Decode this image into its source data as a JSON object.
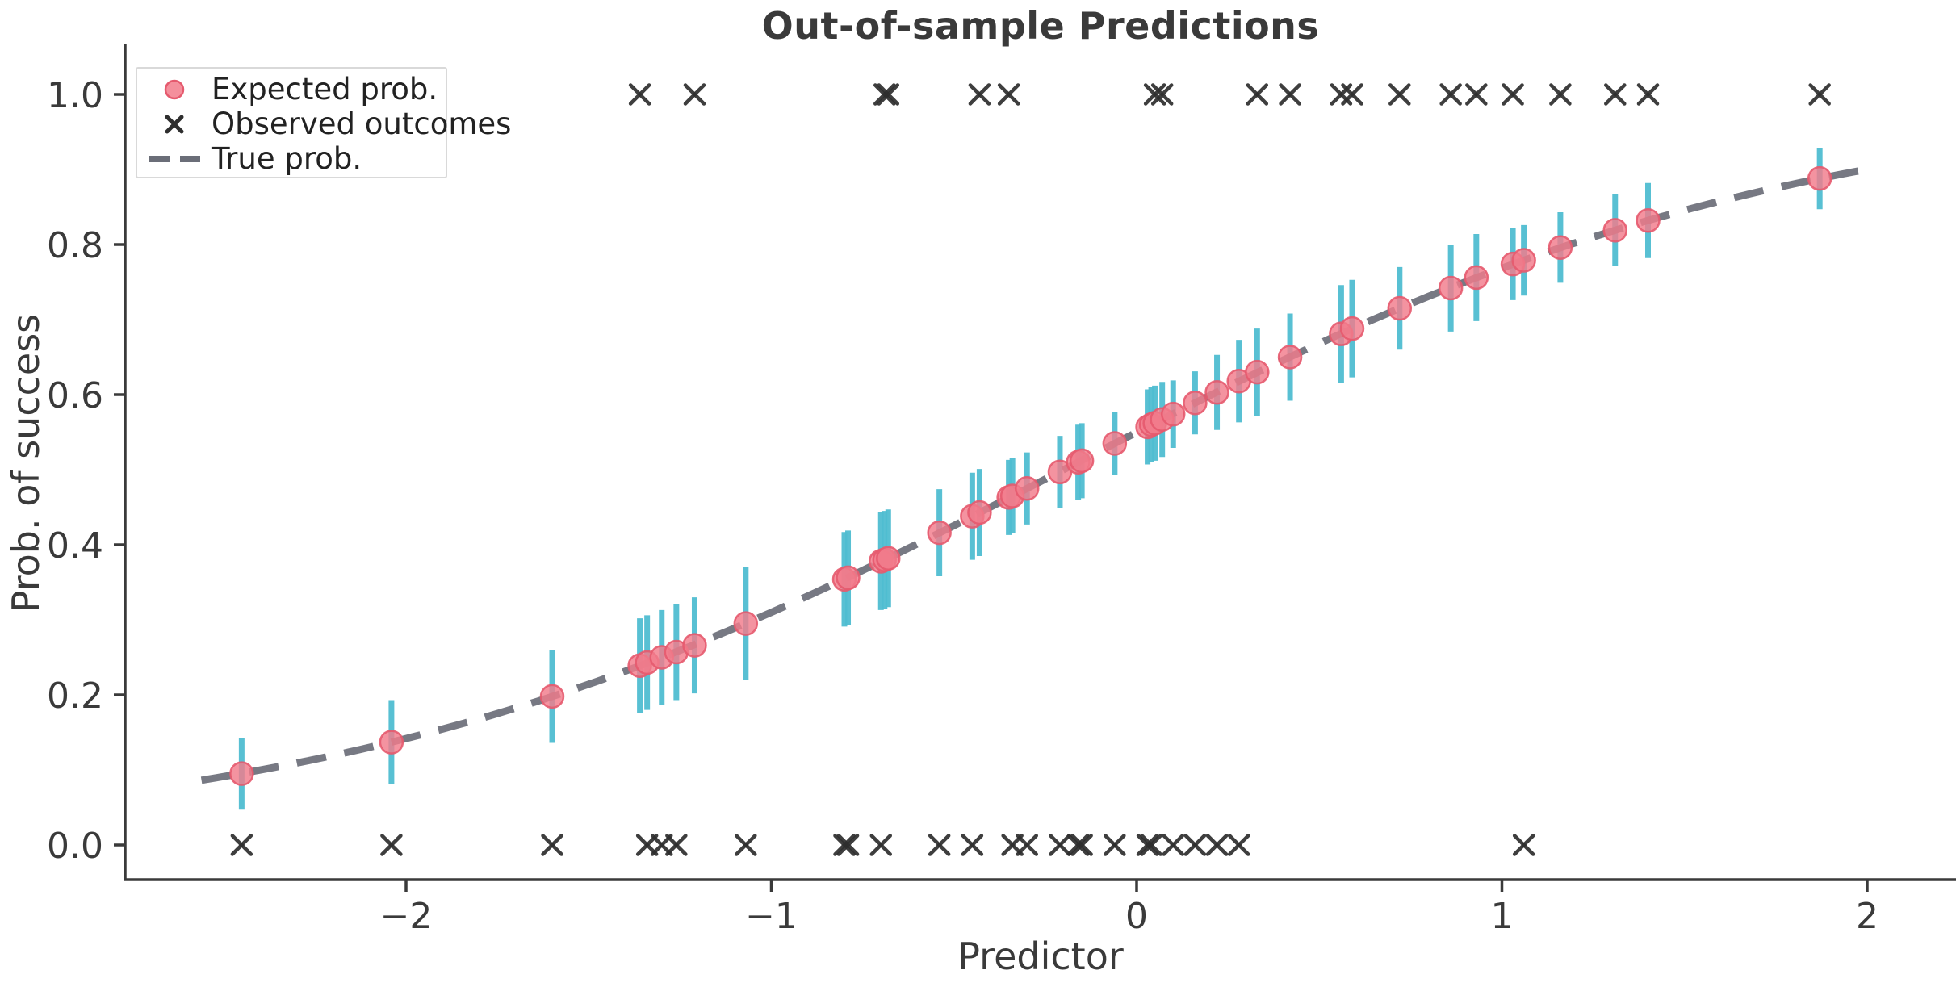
{
  "chart_data": {
    "type": "scatter",
    "title": "Out-of-sample Predictions",
    "xlabel": "Predictor",
    "ylabel": "Prob. of success",
    "xlim": [
      -2.77,
      2.24
    ],
    "ylim": [
      -0.046,
      1.067
    ],
    "grid": false,
    "x_ticks": {
      "values": [
        -2,
        -1,
        0,
        1,
        2
      ],
      "labels": [
        "−2",
        "−1",
        "0",
        "1",
        "2"
      ]
    },
    "y_ticks": {
      "values": [
        0.0,
        0.2,
        0.4,
        0.6,
        0.8,
        1.0
      ],
      "labels": [
        "0.0",
        "0.2",
        "0.4",
        "0.6",
        "0.8",
        "1.0"
      ]
    },
    "legend": {
      "position": "upper-left",
      "items": [
        {
          "label": "Expected prob.",
          "marker": "pink-dot"
        },
        {
          "label": "Observed outcomes",
          "marker": "black-x"
        },
        {
          "label": "True prob.",
          "marker": "gray-dashed-line"
        }
      ]
    },
    "true_prob_curve": {
      "model": "logistic",
      "formula": "p = 1 / (1 + exp(-(0.2 + 1.0*x)))",
      "intercept": 0.2,
      "slope": 1.0,
      "x_range": [
        -2.56,
        2.02
      ]
    },
    "predictions": [
      {
        "x": -2.45,
        "p": 0.095,
        "lo": 0.047,
        "hi": 0.143
      },
      {
        "x": -2.04,
        "p": 0.137,
        "lo": 0.081,
        "hi": 0.193
      },
      {
        "x": -1.6,
        "p": 0.198,
        "lo": 0.136,
        "hi": 0.26
      },
      {
        "x": -1.36,
        "p": 0.239,
        "lo": 0.176,
        "hi": 0.302
      },
      {
        "x": -1.34,
        "p": 0.243,
        "lo": 0.18,
        "hi": 0.306
      },
      {
        "x": -1.3,
        "p": 0.25,
        "lo": 0.187,
        "hi": 0.313
      },
      {
        "x": -1.26,
        "p": 0.257,
        "lo": 0.193,
        "hi": 0.321
      },
      {
        "x": -1.21,
        "p": 0.266,
        "lo": 0.202,
        "hi": 0.33
      },
      {
        "x": -1.07,
        "p": 0.295,
        "lo": 0.22,
        "hi": 0.37
      },
      {
        "x": -0.8,
        "p": 0.354,
        "lo": 0.291,
        "hi": 0.417
      },
      {
        "x": -0.79,
        "p": 0.356,
        "lo": 0.293,
        "hi": 0.419
      },
      {
        "x": -0.7,
        "p": 0.378,
        "lo": 0.313,
        "hi": 0.443
      },
      {
        "x": -0.69,
        "p": 0.38,
        "lo": 0.315,
        "hi": 0.445
      },
      {
        "x": -0.68,
        "p": 0.382,
        "lo": 0.317,
        "hi": 0.447
      },
      {
        "x": -0.54,
        "p": 0.416,
        "lo": 0.358,
        "hi": 0.474
      },
      {
        "x": -0.45,
        "p": 0.438,
        "lo": 0.38,
        "hi": 0.496
      },
      {
        "x": -0.43,
        "p": 0.443,
        "lo": 0.385,
        "hi": 0.501
      },
      {
        "x": -0.35,
        "p": 0.463,
        "lo": 0.413,
        "hi": 0.513
      },
      {
        "x": -0.34,
        "p": 0.465,
        "lo": 0.415,
        "hi": 0.515
      },
      {
        "x": -0.3,
        "p": 0.475,
        "lo": 0.427,
        "hi": 0.523
      },
      {
        "x": -0.21,
        "p": 0.497,
        "lo": 0.449,
        "hi": 0.545
      },
      {
        "x": -0.16,
        "p": 0.51,
        "lo": 0.46,
        "hi": 0.56
      },
      {
        "x": -0.15,
        "p": 0.512,
        "lo": 0.462,
        "hi": 0.562
      },
      {
        "x": -0.06,
        "p": 0.535,
        "lo": 0.493,
        "hi": 0.577
      },
      {
        "x": 0.03,
        "p": 0.557,
        "lo": 0.507,
        "hi": 0.607
      },
      {
        "x": 0.04,
        "p": 0.56,
        "lo": 0.51,
        "hi": 0.61
      },
      {
        "x": 0.05,
        "p": 0.562,
        "lo": 0.512,
        "hi": 0.612
      },
      {
        "x": 0.07,
        "p": 0.567,
        "lo": 0.517,
        "hi": 0.617
      },
      {
        "x": 0.1,
        "p": 0.574,
        "lo": 0.529,
        "hi": 0.619
      },
      {
        "x": 0.16,
        "p": 0.589,
        "lo": 0.547,
        "hi": 0.631
      },
      {
        "x": 0.22,
        "p": 0.603,
        "lo": 0.553,
        "hi": 0.653
      },
      {
        "x": 0.28,
        "p": 0.618,
        "lo": 0.563,
        "hi": 0.673
      },
      {
        "x": 0.33,
        "p": 0.63,
        "lo": 0.572,
        "hi": 0.688
      },
      {
        "x": 0.42,
        "p": 0.65,
        "lo": 0.592,
        "hi": 0.708
      },
      {
        "x": 0.56,
        "p": 0.681,
        "lo": 0.616,
        "hi": 0.746
      },
      {
        "x": 0.59,
        "p": 0.688,
        "lo": 0.623,
        "hi": 0.753
      },
      {
        "x": 0.72,
        "p": 0.715,
        "lo": 0.66,
        "hi": 0.77
      },
      {
        "x": 0.86,
        "p": 0.742,
        "lo": 0.684,
        "hi": 0.8
      },
      {
        "x": 0.93,
        "p": 0.756,
        "lo": 0.698,
        "hi": 0.814
      },
      {
        "x": 1.03,
        "p": 0.774,
        "lo": 0.726,
        "hi": 0.822
      },
      {
        "x": 1.06,
        "p": 0.779,
        "lo": 0.732,
        "hi": 0.826
      },
      {
        "x": 1.16,
        "p": 0.796,
        "lo": 0.749,
        "hi": 0.843
      },
      {
        "x": 1.31,
        "p": 0.819,
        "lo": 0.771,
        "hi": 0.867
      },
      {
        "x": 1.4,
        "p": 0.832,
        "lo": 0.782,
        "hi": 0.882
      },
      {
        "x": 1.87,
        "p": 0.888,
        "lo": 0.847,
        "hi": 0.929
      }
    ],
    "observations": {
      "successes_y": 1.0,
      "failures_y": 0.0,
      "successes_x": [
        -1.36,
        -1.21,
        -0.69,
        -0.68,
        -0.43,
        -0.35,
        0.05,
        0.07,
        0.33,
        0.42,
        0.56,
        0.59,
        0.72,
        0.86,
        0.93,
        1.03,
        1.16,
        1.31,
        1.4,
        1.87
      ],
      "failures_x": [
        -2.45,
        -2.04,
        -1.6,
        -1.34,
        -1.3,
        -1.26,
        -1.07,
        -0.8,
        -0.79,
        -0.7,
        -0.54,
        -0.45,
        -0.34,
        -0.3,
        -0.21,
        -0.16,
        -0.15,
        -0.06,
        0.03,
        0.04,
        0.1,
        0.16,
        0.22,
        0.28,
        1.06
      ]
    }
  },
  "colors": {
    "background": "#ffffff",
    "point_fill": "#f27b8b",
    "point_edge": "#e55a6e",
    "error_bar": "#4fbdd1",
    "curve": "#6b6e78",
    "observed_marker": "#2e2e2e",
    "spine": "#3a3a3a",
    "tick_text": "#3a3a3a",
    "legend_border": "#d9d9d9"
  }
}
